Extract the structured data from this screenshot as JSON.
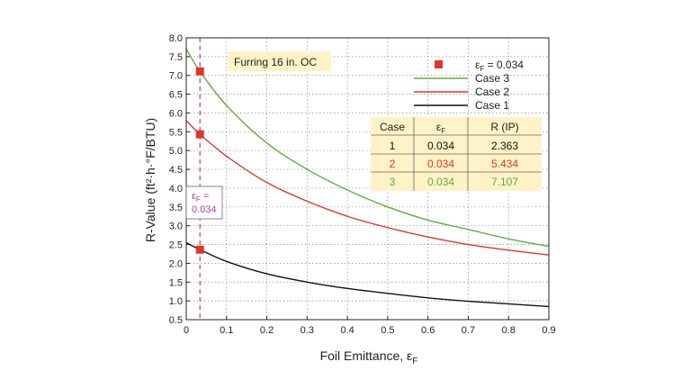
{
  "chart_data": {
    "type": "line",
    "xlabel": "Foil Emittance, ε",
    "xlabel_sub": "F",
    "ylabel": "R-Value (ft²·h·°F/BTU)",
    "xlim": [
      0,
      0.9
    ],
    "ylim": [
      0.5,
      8.0
    ],
    "xticks": [
      "0",
      "0.1",
      "0.2",
      "0.3",
      "0.4",
      "0.5",
      "0.6",
      "0.7",
      "0.8",
      "0.9"
    ],
    "yticks": [
      "0.5",
      "1.0",
      "1.5",
      "2.0",
      "2.5",
      "3.0",
      "3.5",
      "4.0",
      "4.5",
      "5.0",
      "5.5",
      "6.0",
      "6.5",
      "7.0",
      "7.5",
      "8.0"
    ],
    "grid": true,
    "legend_position": "top-right",
    "annotation_box": "Furring 16 in.  OC",
    "vline": {
      "x": 0.034,
      "label_line1": "ε",
      "label_sub": "F",
      "label_line2": " =",
      "label_line3": "0.034"
    },
    "markers_legend": {
      "label": " = 0.034",
      "symbol": "ε",
      "sub": "F"
    },
    "series": [
      {
        "name": "Case 3",
        "color": "#5bb03c",
        "x": [
          0,
          0.034,
          0.1,
          0.2,
          0.3,
          0.4,
          0.5,
          0.6,
          0.7,
          0.8,
          0.9
        ],
        "y": [
          7.7,
          7.107,
          6.2,
          5.2,
          4.5,
          3.95,
          3.5,
          3.15,
          2.9,
          2.65,
          2.45
        ]
      },
      {
        "name": "Case 2",
        "color": "#e0352a",
        "x": [
          0,
          0.034,
          0.1,
          0.2,
          0.3,
          0.4,
          0.5,
          0.6,
          0.7,
          0.8,
          0.9
        ],
        "y": [
          5.8,
          5.434,
          4.85,
          4.15,
          3.65,
          3.25,
          2.95,
          2.7,
          2.5,
          2.35,
          2.22
        ]
      },
      {
        "name": "Case 1",
        "color": "#111111",
        "x": [
          0,
          0.034,
          0.1,
          0.2,
          0.3,
          0.4,
          0.5,
          0.6,
          0.7,
          0.8,
          0.9
        ],
        "y": [
          2.55,
          2.363,
          2.05,
          1.72,
          1.5,
          1.33,
          1.2,
          1.08,
          0.99,
          0.92,
          0.85
        ]
      }
    ],
    "markers": {
      "color": "#e0352a",
      "x": [
        0.034,
        0.034,
        0.034
      ],
      "y": [
        7.107,
        5.434,
        2.363
      ]
    },
    "table": {
      "headers": [
        "Case",
        "ε",
        "R (IP)"
      ],
      "header_sub": "F",
      "rows": [
        {
          "case": "1",
          "eps": "0.034",
          "r": "2.363",
          "color": "#111111"
        },
        {
          "case": "2",
          "eps": "0.034",
          "r": "5.434",
          "color": "#e0352a"
        },
        {
          "case": "3",
          "eps": "0.034",
          "r": "7.107",
          "color": "#5bb03c"
        }
      ]
    },
    "colors": {
      "table_bg": "#fff2c6",
      "annotation_bg": "#fff2c6",
      "vline": "#b03aa6",
      "grid": "#8a8a8a"
    }
  }
}
